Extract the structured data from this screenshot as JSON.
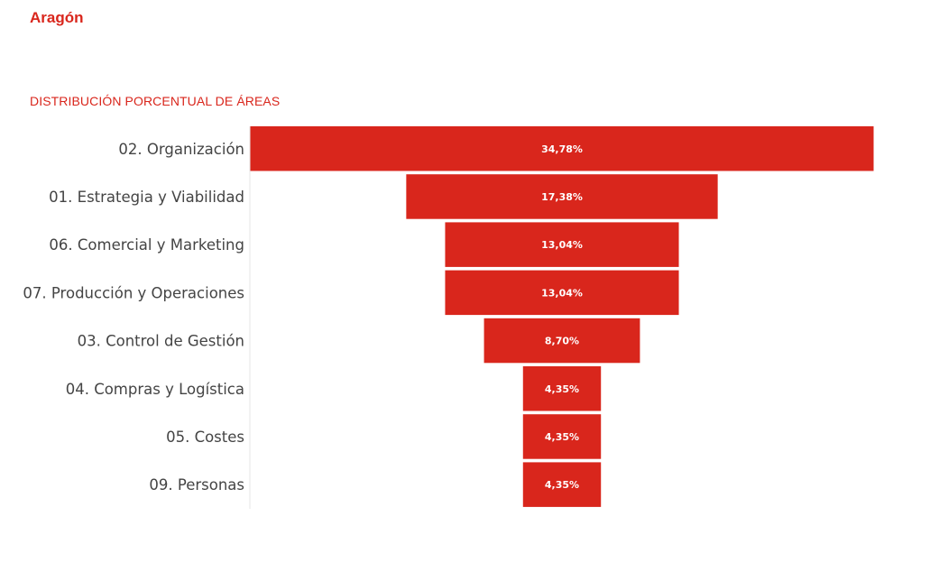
{
  "header": {
    "region": "Aragón",
    "chart_title": "DISTRIBUCIÓN PORCENTUAL DE ÁREAS"
  },
  "colors": {
    "accent": "#d9261c",
    "bar": "#d9261c",
    "label_text": "#444444",
    "bar_text": "#ffffff"
  },
  "chart_data": {
    "type": "funnel",
    "title": "DISTRIBUCIÓN PORCENTUAL DE ÁREAS",
    "categories": [
      "02. Organización",
      "01. Estrategia y Viabilidad",
      "06. Comercial y Marketing",
      "07. Producción y Operaciones",
      "03. Control de Gestión",
      "04. Compras y Logística",
      "05. Costes",
      "09. Personas"
    ],
    "values": [
      34.78,
      17.38,
      13.04,
      13.04,
      8.7,
      4.35,
      4.35,
      4.35
    ],
    "value_labels": [
      "34,78%",
      "17,38%",
      "13,04%",
      "13,04%",
      "8,70%",
      "4,35%",
      "4,35%",
      "4,35%"
    ],
    "unit": "%"
  }
}
